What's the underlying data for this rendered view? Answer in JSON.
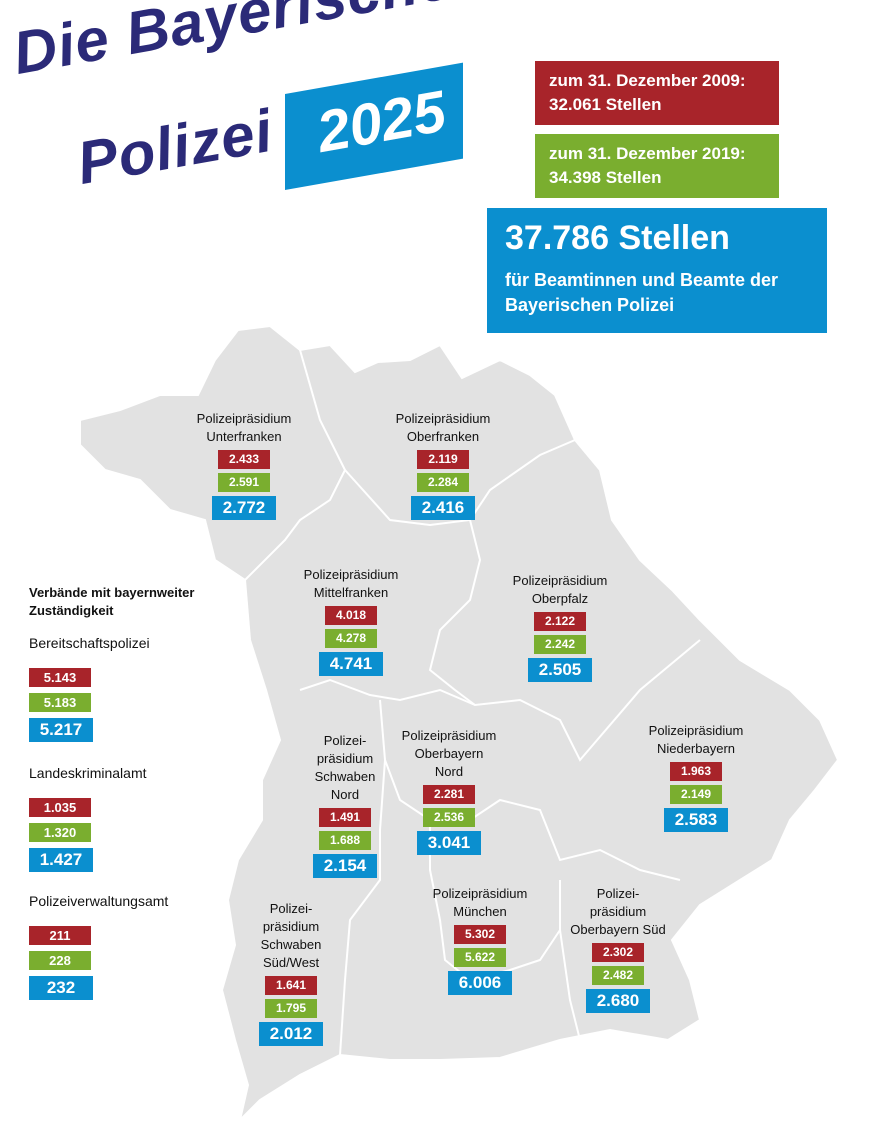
{
  "title": {
    "line1": "Die Bayerische",
    "line2": "Polizei",
    "year": "2025"
  },
  "info": {
    "y2009_line1": "zum 31. Dezember 2009:",
    "y2009_line2": "32.061 Stellen",
    "y2019_line1": "zum 31. Dezember 2019:",
    "y2019_line2": "34.398 Stellen",
    "total_big": "37.786 Stellen",
    "total_sub1": "für Beamtinnen und Beamte der",
    "total_sub2": "Bayerischen Polizei"
  },
  "colors": {
    "y2009": "#a8242a",
    "y2019": "#7aae2f",
    "y2025": "#0b8fcf",
    "title": "#2b2a78",
    "map": "#e2e2e2"
  },
  "regions": [
    {
      "name": "Polizeipräsidium\nUnterfranken",
      "v2009": "2.433",
      "v2019": "2.591",
      "v2025": "2.772"
    },
    {
      "name": "Polizeipräsidium\nOberfranken",
      "v2009": "2.119",
      "v2019": "2.284",
      "v2025": "2.416"
    },
    {
      "name": "Polizeipräsidium\nMittelfranken",
      "v2009": "4.018",
      "v2019": "4.278",
      "v2025": "4.741"
    },
    {
      "name": "Polizeipräsidium\nOberpfalz",
      "v2009": "2.122",
      "v2019": "2.242",
      "v2025": "2.505"
    },
    {
      "name": "Polizei-\npräsidium\nSchwaben\nNord",
      "v2009": "1.491",
      "v2019": "1.688",
      "v2025": "2.154"
    },
    {
      "name": "Polizeipräsidium\nOberbayern\nNord",
      "v2009": "2.281",
      "v2019": "2.536",
      "v2025": "3.041"
    },
    {
      "name": "Polizeipräsidium\nNiederbayern",
      "v2009": "1.963",
      "v2019": "2.149",
      "v2025": "2.583"
    },
    {
      "name": "Polizeipräsidium\nMünchen",
      "v2009": "5.302",
      "v2019": "5.622",
      "v2025": "6.006"
    },
    {
      "name": "Polizei-\npräsidium\nOberbayern Süd",
      "v2009": "2.302",
      "v2019": "2.482",
      "v2025": "2.680"
    },
    {
      "name": "Polizei-\npräsidium\nSchwaben\nSüd/West",
      "v2009": "1.641",
      "v2019": "1.795",
      "v2025": "2.012"
    }
  ],
  "side": {
    "header": "Verbände mit bayernweiter\nZuständigkeit",
    "units": [
      {
        "name": "Bereitschaftspolizei",
        "v2009": "5.143",
        "v2019": "5.183",
        "v2025": "5.217"
      },
      {
        "name": "Landeskriminalamt",
        "v2009": "1.035",
        "v2019": "1.320",
        "v2025": "1.427"
      },
      {
        "name": "Polizeiverwaltungsamt",
        "v2009": "211",
        "v2019": "228",
        "v2025": "232"
      }
    ]
  }
}
